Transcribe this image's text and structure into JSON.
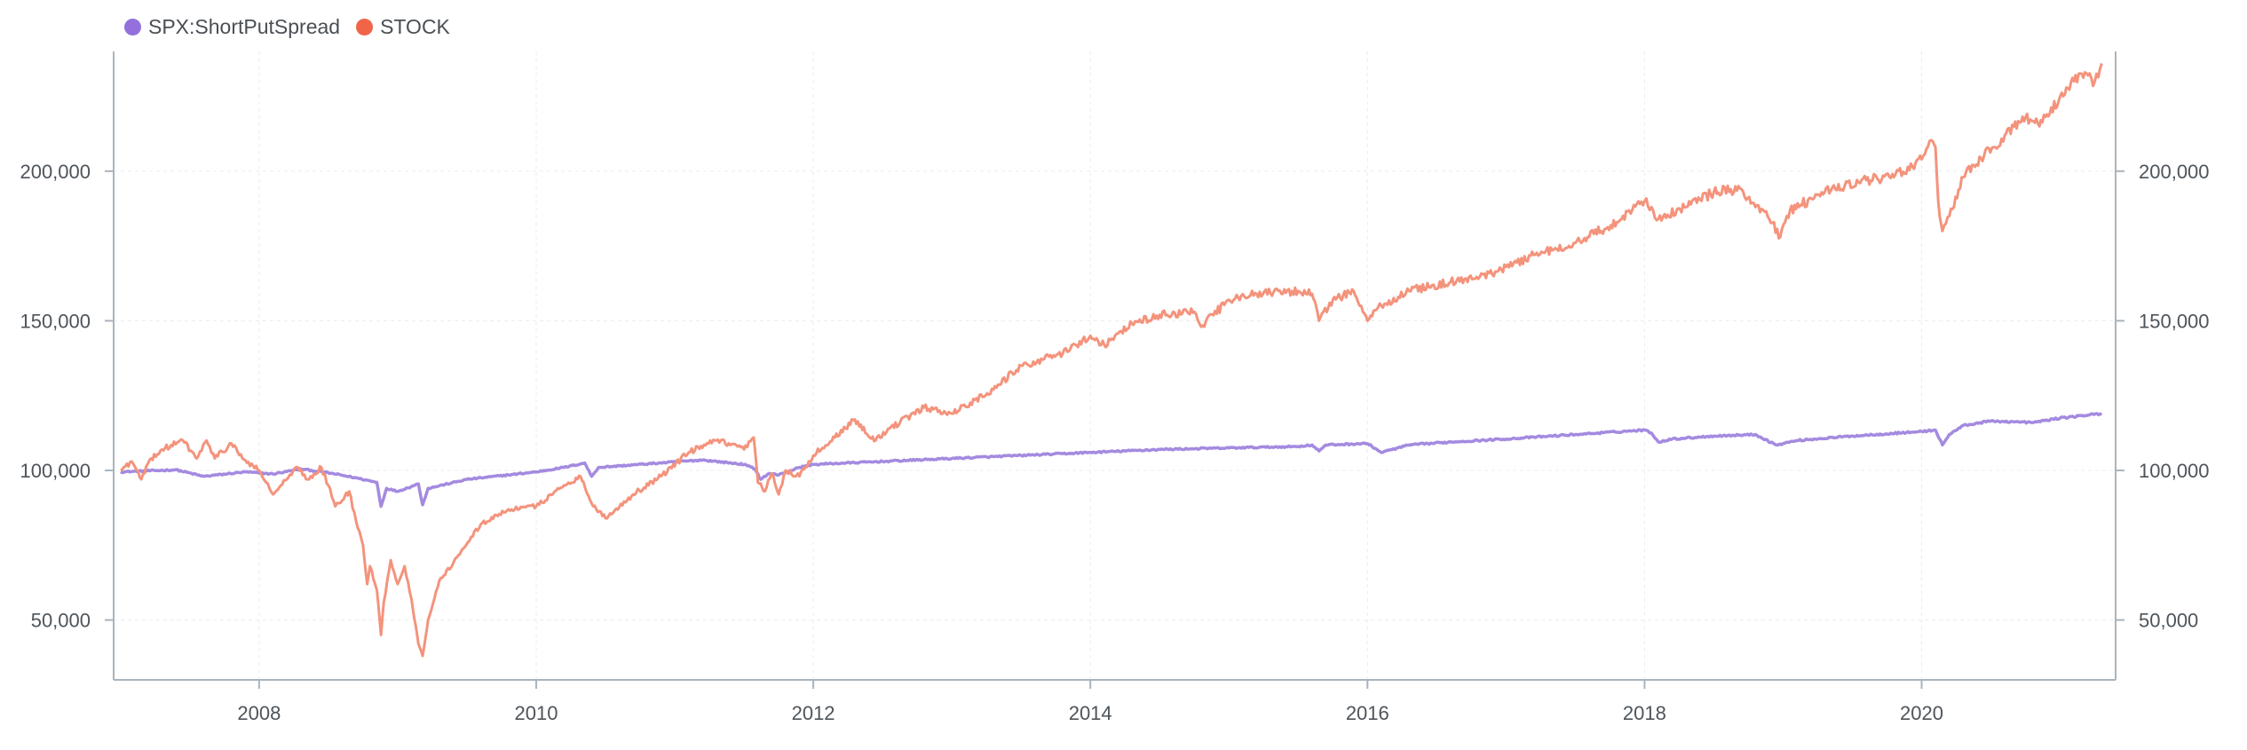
{
  "chart_data": {
    "type": "line",
    "legend_position": "top-left",
    "grid": true,
    "xlim": [
      2006.95,
      2021.4
    ],
    "ylim": [
      30000,
      240000
    ],
    "x_ticks": [
      2008,
      2010,
      2012,
      2014,
      2016,
      2018,
      2020
    ],
    "x_tick_labels": [
      "2008",
      "2010",
      "2012",
      "2014",
      "2016",
      "2018",
      "2020"
    ],
    "y_ticks": [
      50000,
      100000,
      150000,
      200000
    ],
    "y_tick_labels": [
      "50,000",
      "100,000",
      "150,000",
      "200,000"
    ],
    "series": [
      {
        "name": "SPX:ShortPutSpread",
        "color": "#a48ae0",
        "legend_color": "#9370db",
        "x": [
          2007.0,
          2007.4,
          2007.6,
          2007.9,
          2008.1,
          2008.3,
          2008.5,
          2008.7,
          2008.85,
          2008.88,
          2008.92,
          2009.0,
          2009.15,
          2009.18,
          2009.22,
          2009.5,
          2009.8,
          2010.0,
          2010.2,
          2010.35,
          2010.4,
          2010.45,
          2010.6,
          2010.9,
          2011.2,
          2011.5,
          2011.58,
          2011.62,
          2011.68,
          2011.75,
          2011.9,
          2012.0,
          2012.5,
          2013.0,
          2013.5,
          2014.0,
          2014.5,
          2015.0,
          2015.5,
          2015.6,
          2015.65,
          2015.7,
          2016.0,
          2016.1,
          2016.3,
          2016.6,
          2017.0,
          2017.5,
          2018.0,
          2018.05,
          2018.1,
          2018.2,
          2018.5,
          2018.8,
          2018.95,
          2019.0,
          2019.1,
          2019.5,
          2020.0,
          2020.1,
          2020.15,
          2020.2,
          2020.3,
          2020.5,
          2020.8,
          2021.0,
          2021.2,
          2021.3
        ],
        "y": [
          99500,
          100200,
          98000,
          99500,
          98800,
          100500,
          99200,
          97500,
          96000,
          88000,
          94000,
          93000,
          95500,
          88500,
          94000,
          97000,
          98500,
          99500,
          101000,
          102500,
          98000,
          101000,
          101500,
          102500,
          103500,
          102000,
          100500,
          97000,
          99000,
          98500,
          101000,
          102000,
          103000,
          104000,
          105000,
          106000,
          107000,
          107500,
          108000,
          108500,
          106500,
          108500,
          109000,
          106000,
          108500,
          109500,
          110500,
          112000,
          113500,
          112500,
          109500,
          110500,
          111500,
          112000,
          108500,
          109000,
          110000,
          111500,
          113000,
          113500,
          108500,
          112000,
          115000,
          116500,
          116000,
          117500,
          118500,
          119000
        ]
      },
      {
        "name": "STOCK",
        "color": "#f4937c",
        "legend_color": "#f06448",
        "x": [
          2007.0,
          2007.08,
          2007.15,
          2007.22,
          2007.3,
          2007.45,
          2007.55,
          2007.62,
          2007.68,
          2007.8,
          2007.88,
          2008.0,
          2008.05,
          2008.1,
          2008.2,
          2008.28,
          2008.35,
          2008.45,
          2008.5,
          2008.55,
          2008.6,
          2008.65,
          2008.7,
          2008.75,
          2008.78,
          2008.8,
          2008.85,
          2008.88,
          2008.9,
          2008.95,
          2009.0,
          2009.05,
          2009.1,
          2009.15,
          2009.18,
          2009.22,
          2009.3,
          2009.45,
          2009.6,
          2009.8,
          2010.0,
          2010.2,
          2010.32,
          2010.4,
          2010.5,
          2010.7,
          2010.9,
          2011.1,
          2011.3,
          2011.5,
          2011.57,
          2011.6,
          2011.65,
          2011.7,
          2011.75,
          2011.8,
          2011.9,
          2012.0,
          2012.3,
          2012.45,
          2012.55,
          2012.8,
          2013.0,
          2013.3,
          2013.5,
          2013.8,
          2014.0,
          2014.1,
          2014.3,
          2014.5,
          2014.75,
          2014.8,
          2015.0,
          2015.2,
          2015.5,
          2015.6,
          2015.65,
          2015.75,
          2015.9,
          2016.0,
          2016.1,
          2016.3,
          2016.6,
          2016.8,
          2017.0,
          2017.2,
          2017.5,
          2017.8,
          2018.0,
          2018.05,
          2018.1,
          2018.3,
          2018.5,
          2018.7,
          2018.8,
          2018.9,
          2018.98,
          2019.05,
          2019.3,
          2019.6,
          2019.8,
          2020.0,
          2020.08,
          2020.1,
          2020.12,
          2020.15,
          2020.2,
          2020.3,
          2020.45,
          2020.6,
          2020.75,
          2020.85,
          2021.0,
          2021.1,
          2021.2,
          2021.25,
          2021.3
        ],
        "y": [
          100000,
          103000,
          97000,
          104000,
          107000,
          110000,
          104000,
          110000,
          104000,
          109000,
          104000,
          100000,
          96000,
          92000,
          97000,
          101000,
          97000,
          101000,
          95000,
          88000,
          90000,
          93000,
          83000,
          75000,
          62000,
          68000,
          60000,
          45000,
          56000,
          70000,
          62000,
          68000,
          57000,
          42000,
          38000,
          50000,
          63000,
          72000,
          82000,
          87000,
          88000,
          95000,
          98000,
          89000,
          84000,
          92000,
          98000,
          106000,
          110000,
          107000,
          111000,
          96000,
          93000,
          99000,
          92000,
          100000,
          98000,
          105000,
          117000,
          110000,
          114000,
          121000,
          119000,
          127000,
          135000,
          139000,
          145000,
          142000,
          149000,
          152000,
          153000,
          148000,
          157000,
          159000,
          160000,
          159000,
          150000,
          157000,
          160000,
          150000,
          155000,
          160000,
          163000,
          164000,
          168000,
          172000,
          176000,
          183000,
          190000,
          188000,
          184000,
          188000,
          193000,
          194000,
          188000,
          184000,
          178000,
          187000,
          193000,
          197000,
          198000,
          204000,
          210000,
          208000,
          190000,
          180000,
          185000,
          198000,
          205000,
          212000,
          218000,
          215000,
          225000,
          230000,
          232000,
          230000,
          236000
        ]
      }
    ]
  }
}
